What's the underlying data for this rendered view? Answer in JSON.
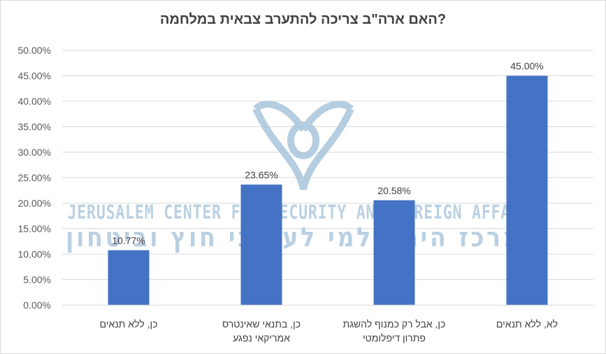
{
  "chart_data": {
    "type": "bar",
    "title": "?האם ארה\"ב צריכה להתערב צבאית במלחמה",
    "categories": [
      [
        "כן, ללא תנאים"
      ],
      [
        "כן, בתנאי שאינטרס",
        "אמריקאי נפגע"
      ],
      [
        "כן, אבל רק כמנוף להשגת",
        "פתרון דיפלומטי"
      ],
      [
        "לא, ללא תנאים"
      ]
    ],
    "values": [
      10.77,
      23.65,
      20.58,
      45.0
    ],
    "data_labels": [
      "10.77%",
      "23.65%",
      "20.58%",
      "45.00%"
    ],
    "ylim": [
      0,
      50
    ],
    "yticks": [
      "0.00%",
      "5.00%",
      "10.00%",
      "15.00%",
      "20.00%",
      "25.00%",
      "30.00%",
      "35.00%",
      "40.00%",
      "45.00%",
      "50.00%"
    ],
    "grid": true,
    "bar_color": "#4472c4",
    "xlabel": "",
    "ylabel": ""
  },
  "watermark": {
    "english": "JERUSALEM CENTER FOR SECURITY AND FOREIGN AFFAIRS",
    "hebrew": "המרכז הירושלמי לענייני חוץ וביטחון",
    "color": "#a9c5db"
  }
}
